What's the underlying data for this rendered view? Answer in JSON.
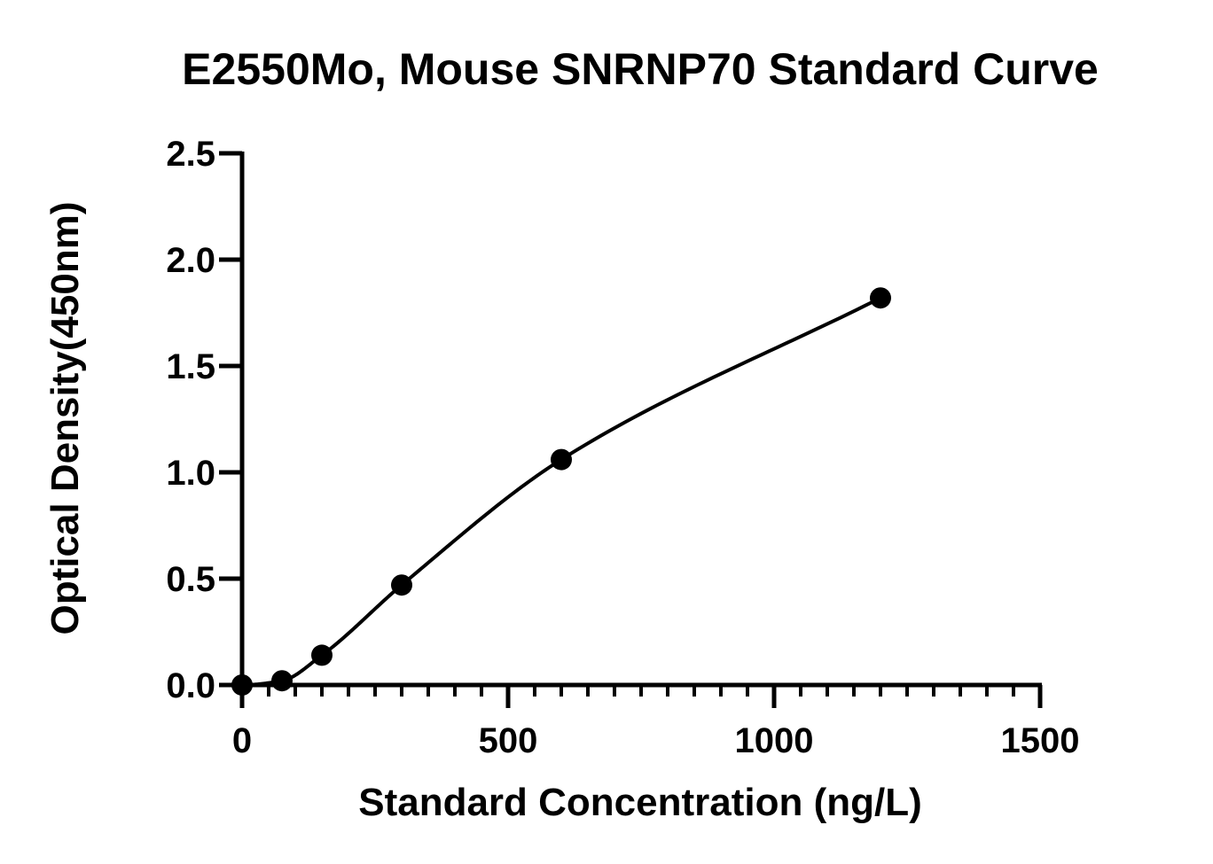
{
  "chart_data": {
    "type": "scatter",
    "title": "E2550Mo, Mouse SNRNP70 Standard Curve",
    "xlabel": "Standard Concentration (ng/L)",
    "ylabel": "Optical Density(450nm)",
    "xlim": [
      0,
      1500
    ],
    "ylim": [
      0,
      2.5
    ],
    "x_ticks": [
      0,
      500,
      1000,
      1500
    ],
    "x_tick_labels": [
      "0",
      "500",
      "1000",
      "1500"
    ],
    "x_minor_step": 50,
    "y_ticks": [
      0,
      0.5,
      1.0,
      1.5,
      2.0,
      2.5
    ],
    "y_tick_labels": [
      "0.0",
      "0.5",
      "1.0",
      "1.5",
      "2.0",
      "2.5"
    ],
    "grid": false,
    "series": [
      {
        "x": [
          0,
          75,
          150,
          300,
          600,
          1200
        ],
        "y": [
          0.0,
          0.02,
          0.14,
          0.47,
          1.06,
          1.82
        ],
        "marker": "circle",
        "color": "#000000",
        "fit_curve": true
      }
    ]
  }
}
